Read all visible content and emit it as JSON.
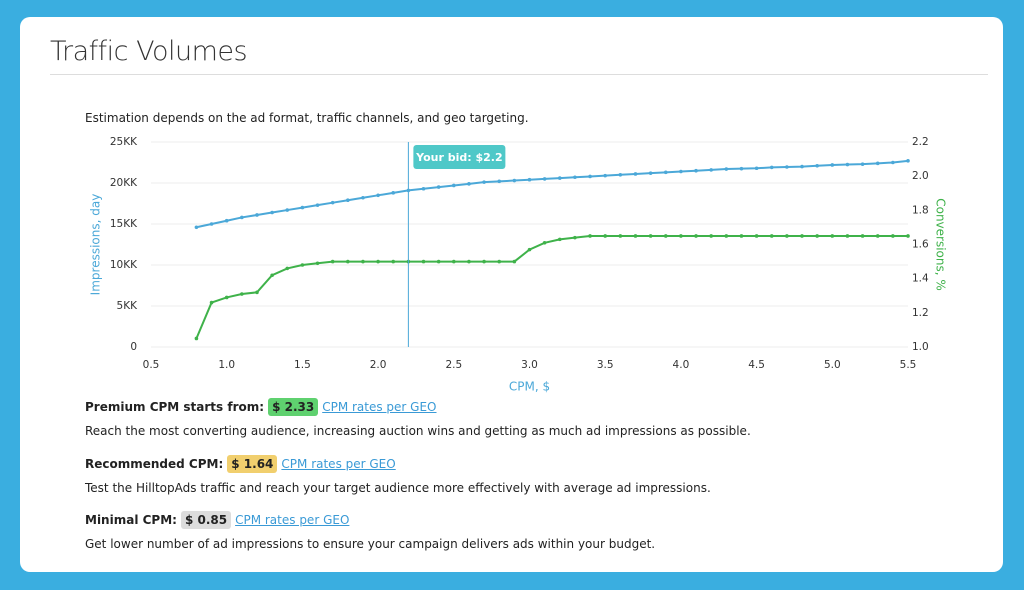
{
  "header": {
    "title": "Traffic Volumes"
  },
  "description": "Estimation depends on the ad format, traffic channels, and geo targeting.",
  "chart_data": {
    "type": "line",
    "x": [
      0.8,
      0.9,
      1.0,
      1.1,
      1.2,
      1.3,
      1.4,
      1.5,
      1.6,
      1.7,
      1.8,
      1.9,
      2.0,
      2.1,
      2.2,
      2.3,
      2.4,
      2.5,
      2.6,
      2.7,
      2.8,
      2.9,
      3.0,
      3.1,
      3.2,
      3.3,
      3.4,
      3.5,
      3.6,
      3.7,
      3.8,
      3.9,
      4.0,
      4.1,
      4.2,
      4.3,
      4.4,
      4.5,
      4.6,
      4.7,
      4.8,
      4.9,
      5.0,
      5.1,
      5.2,
      5.3,
      5.4,
      5.5
    ],
    "series": [
      {
        "name": "Impressions, day",
        "color": "#4ba8d8",
        "values": [
          14600,
          15000,
          15400,
          15800,
          16100,
          16400,
          16700,
          17000,
          17300,
          17600,
          17900,
          18200,
          18500,
          18800,
          19100,
          19300,
          19500,
          19700,
          19900,
          20100,
          20200,
          20300,
          20400,
          20500,
          20600,
          20700,
          20800,
          20900,
          21000,
          21100,
          21200,
          21300,
          21400,
          21500,
          21600,
          21700,
          21750,
          21800,
          21900,
          21950,
          22000,
          22100,
          22200,
          22250,
          22300,
          22400,
          22500,
          22700
        ]
      },
      {
        "name": "Conversions, %",
        "color": "#3fb24a",
        "axis": "y2",
        "values": [
          1.05,
          1.26,
          1.29,
          1.31,
          1.32,
          1.42,
          1.46,
          1.48,
          1.49,
          1.5,
          1.5,
          1.5,
          1.5,
          1.5,
          1.5,
          1.5,
          1.5,
          1.5,
          1.5,
          1.5,
          1.5,
          1.5,
          1.57,
          1.61,
          1.63,
          1.64,
          1.65,
          1.65,
          1.65,
          1.65,
          1.65,
          1.65,
          1.65,
          1.65,
          1.65,
          1.65,
          1.65,
          1.65,
          1.65,
          1.65,
          1.65,
          1.65,
          1.65,
          1.65,
          1.65,
          1.65,
          1.65,
          1.65
        ]
      }
    ],
    "xlabel": "CPM, $",
    "xlim": [
      0.5,
      5.5
    ],
    "xticks": [
      0.5,
      {
        "value": 1,
        "label": "1.0"
      },
      1.5,
      {
        "value": 2,
        "label": "2.0"
      },
      2.5,
      {
        "value": 3,
        "label": "3.0"
      },
      3.5,
      {
        "value": 4,
        "label": "4.0"
      },
      4.5,
      {
        "value": 5,
        "label": "5.0"
      },
      5.5
    ],
    "ylim": [
      0,
      25000
    ],
    "yticks": [
      0,
      {
        "value": 5000,
        "label": "5KK"
      },
      {
        "value": 10000,
        "label": "10KK"
      },
      {
        "value": 15000,
        "label": "15KK"
      },
      {
        "value": 20000,
        "label": "20KK"
      },
      {
        "value": 25000,
        "label": "25KK"
      }
    ],
    "y2lim": [
      1,
      2.2
    ],
    "y2ticks": [
      {
        "value": 1,
        "label": "1.0"
      },
      1.2,
      1.4,
      1.6,
      1.8,
      {
        "value": 2,
        "label": "2.0"
      },
      2.2
    ],
    "grid": true,
    "bid": 2.2,
    "bid_label": "Your bid: $2.2"
  },
  "tiers": [
    {
      "label": "Premium CPM starts from:",
      "price": "$ 2.33",
      "color": "#5fd16f",
      "link": "CPM rates per GEO",
      "text": "Reach the most converting audience, increasing auction wins and getting as much ad impressions as possible."
    },
    {
      "label": "Recommended CPM:",
      "price": "$ 1.64",
      "color": "#f1cf6e",
      "link": "CPM rates per GEO",
      "text": "Test the HilltopAds traffic and reach your target audience more effectively with average ad impressions."
    },
    {
      "label": "Minimal CPM:",
      "price": "$ 0.85",
      "color": "#dddddd",
      "link": "CPM rates per GEO",
      "text": "Get lower number of ad impressions to ensure your campaign delivers ads within your budget."
    }
  ]
}
